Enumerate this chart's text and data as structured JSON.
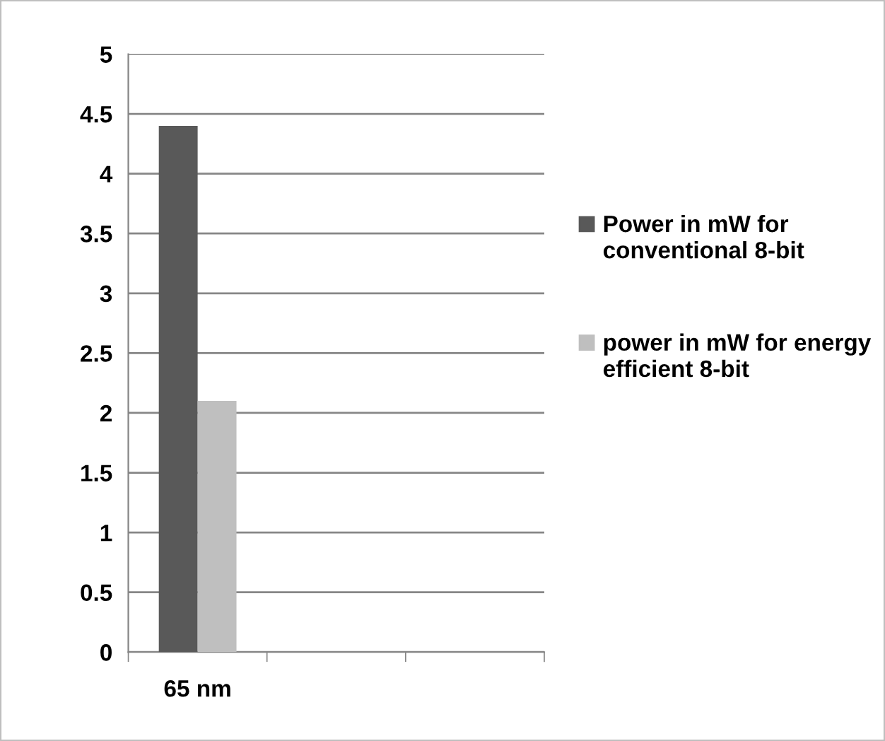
{
  "chart_data": {
    "type": "bar",
    "categories": [
      "65 nm",
      null,
      null
    ],
    "series": [
      {
        "name": "Power in mW for conventional 8-bit",
        "color": "#595959",
        "values": [
          4.4,
          null,
          null
        ]
      },
      {
        "name": "power in mW for energy efficient 8-bit",
        "color": "#bfbfbf",
        "values": [
          2.1,
          null,
          null
        ]
      }
    ],
    "ylim": [
      0,
      5
    ],
    "yticks": [
      0,
      0.5,
      1,
      1.5,
      2,
      2.5,
      3,
      3.5,
      4,
      4.5,
      5
    ],
    "grid": "y",
    "legend": "right"
  }
}
